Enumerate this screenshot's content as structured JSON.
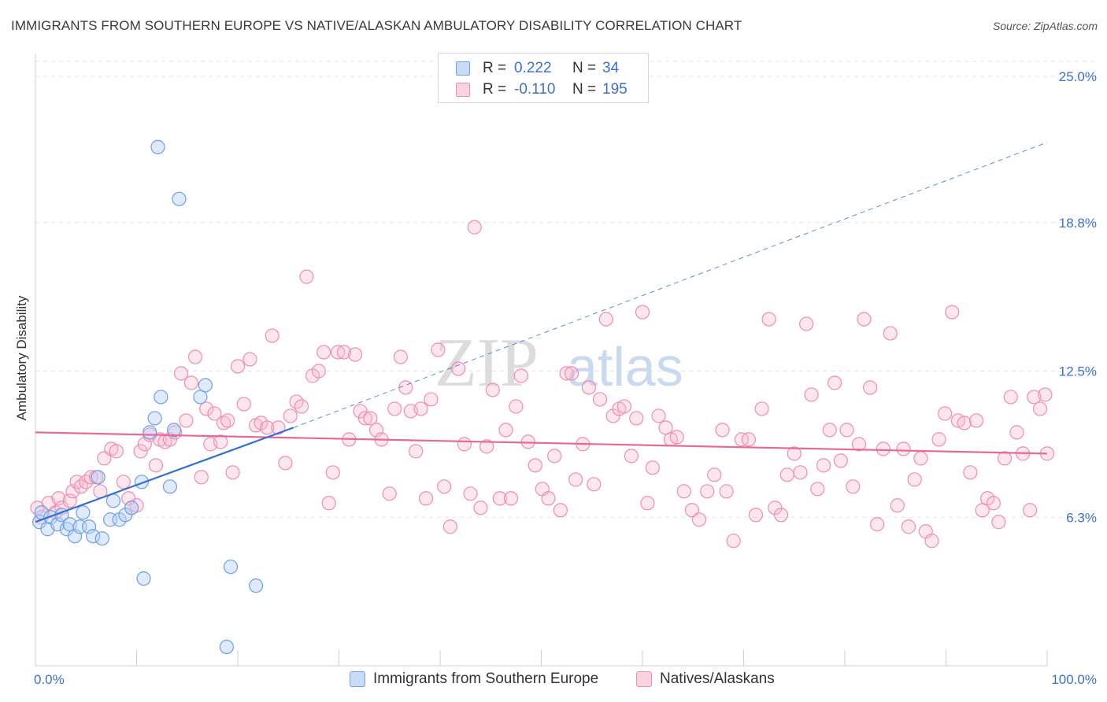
{
  "title": "IMMIGRANTS FROM SOUTHERN EUROPE VS NATIVE/ALASKAN AMBULATORY DISABILITY CORRELATION CHART",
  "source": "Source: ZipAtlas.com",
  "watermark": {
    "zip": "ZIP",
    "atlas": "atlas"
  },
  "legend": {
    "rows": [
      {
        "r_label": "R =",
        "r_value": "0.222",
        "n_label": "N =",
        "n_value": "34"
      },
      {
        "r_label": "R =",
        "r_value": "-0.110",
        "n_label": "N =",
        "n_value": "195"
      }
    ]
  },
  "chart_data": {
    "type": "scatter",
    "title": "IMMIGRANTS FROM SOUTHERN EUROPE VS NATIVE/ALASKAN AMBULATORY DISABILITY CORRELATION CHART",
    "xlabel": "",
    "ylabel": "Ambulatory Disability",
    "xlim": [
      0,
      100
    ],
    "ylim": [
      0,
      25.8
    ],
    "x_tick_labels": [
      "0.0%",
      "100.0%"
    ],
    "y_tick_labels": [
      "6.3%",
      "12.5%",
      "18.8%",
      "25.0%"
    ],
    "y_ticks": [
      6.3,
      12.5,
      18.8,
      25.0
    ],
    "grid": "horizontal dashed",
    "legend_position": "top-center",
    "colors": {
      "blue": "#6f9fe6",
      "pink": "#f08cb0",
      "blue_line": "#2f6fd6",
      "pink_line": "#e8689a",
      "tick_text": "#3d6fd0"
    },
    "series": [
      {
        "name": "Immigrants from Southern Europe",
        "color": "#6f9fe6",
        "points": [
          [
            0.4,
            6.1
          ],
          [
            0.6,
            6.5
          ],
          [
            1.2,
            5.8
          ],
          [
            1.5,
            6.3
          ],
          [
            2.2,
            6.0
          ],
          [
            2.6,
            6.4
          ],
          [
            3.1,
            5.8
          ],
          [
            3.4,
            6.0
          ],
          [
            3.9,
            5.5
          ],
          [
            4.4,
            5.9
          ],
          [
            4.7,
            6.5
          ],
          [
            5.3,
            5.9
          ],
          [
            5.7,
            5.5
          ],
          [
            6.2,
            8.0
          ],
          [
            6.6,
            5.4
          ],
          [
            7.4,
            6.2
          ],
          [
            7.7,
            7.0
          ],
          [
            8.3,
            6.2
          ],
          [
            8.9,
            6.4
          ],
          [
            9.5,
            6.7
          ],
          [
            10.5,
            7.8
          ],
          [
            10.7,
            3.7
          ],
          [
            11.3,
            9.9
          ],
          [
            11.8,
            10.5
          ],
          [
            12.4,
            11.4
          ],
          [
            12.1,
            22.0
          ],
          [
            13.3,
            7.6
          ],
          [
            13.7,
            10.0
          ],
          [
            14.2,
            19.8
          ],
          [
            16.3,
            11.4
          ],
          [
            16.8,
            11.9
          ],
          [
            18.9,
            0.8
          ],
          [
            19.3,
            4.2
          ],
          [
            21.8,
            3.4
          ]
        ],
        "trend": {
          "x": [
            0,
            25.5
          ],
          "y": [
            6.1,
            10.1
          ],
          "extended_x": [
            25.5,
            100
          ],
          "extended_y": [
            10.1,
            22.2
          ]
        }
      },
      {
        "name": "Natives/Alaskans",
        "color": "#f08cb0",
        "points": [
          [
            0.2,
            6.7
          ],
          [
            0.6,
            6.3
          ],
          [
            1.3,
            6.9
          ],
          [
            2.0,
            6.5
          ],
          [
            2.3,
            7.1
          ],
          [
            2.6,
            6.7
          ],
          [
            3.4,
            7.0
          ],
          [
            3.7,
            7.4
          ],
          [
            4.1,
            7.8
          ],
          [
            4.5,
            7.6
          ],
          [
            5.0,
            7.8
          ],
          [
            5.5,
            8.0
          ],
          [
            6.0,
            8.0
          ],
          [
            6.4,
            7.4
          ],
          [
            6.8,
            8.8
          ],
          [
            7.5,
            9.2
          ],
          [
            8.0,
            9.1
          ],
          [
            8.7,
            7.8
          ],
          [
            9.2,
            7.1
          ],
          [
            9.5,
            6.7
          ],
          [
            10.0,
            6.8
          ],
          [
            10.4,
            9.1
          ],
          [
            10.8,
            9.4
          ],
          [
            11.3,
            9.8
          ],
          [
            11.9,
            8.5
          ],
          [
            12.3,
            9.6
          ],
          [
            12.8,
            9.5
          ],
          [
            13.3,
            9.6
          ],
          [
            13.8,
            9.9
          ],
          [
            14.4,
            12.4
          ],
          [
            14.9,
            10.4
          ],
          [
            15.4,
            12.0
          ],
          [
            15.8,
            13.1
          ],
          [
            16.4,
            8.0
          ],
          [
            16.9,
            10.9
          ],
          [
            17.3,
            9.4
          ],
          [
            17.7,
            10.7
          ],
          [
            18.3,
            9.5
          ],
          [
            18.6,
            10.3
          ],
          [
            19.0,
            10.4
          ],
          [
            19.5,
            8.2
          ],
          [
            20.0,
            12.7
          ],
          [
            20.6,
            11.1
          ],
          [
            21.2,
            13.0
          ],
          [
            21.8,
            10.2
          ],
          [
            22.3,
            10.3
          ],
          [
            22.9,
            10.1
          ],
          [
            23.4,
            14.0
          ],
          [
            24.0,
            10.1
          ],
          [
            24.7,
            8.6
          ],
          [
            25.2,
            10.6
          ],
          [
            25.8,
            11.2
          ],
          [
            26.3,
            11.0
          ],
          [
            26.8,
            16.5
          ],
          [
            27.4,
            12.3
          ],
          [
            28.0,
            12.5
          ],
          [
            28.5,
            13.3
          ],
          [
            29.0,
            6.9
          ],
          [
            29.4,
            8.2
          ],
          [
            29.9,
            13.3
          ],
          [
            30.5,
            13.3
          ],
          [
            31.0,
            9.6
          ],
          [
            31.6,
            13.2
          ],
          [
            32.1,
            10.8
          ],
          [
            32.6,
            10.5
          ],
          [
            33.1,
            10.5
          ],
          [
            33.7,
            10.0
          ],
          [
            34.2,
            9.6
          ],
          [
            35.0,
            7.3
          ],
          [
            35.5,
            10.9
          ],
          [
            36.1,
            13.1
          ],
          [
            36.6,
            11.8
          ],
          [
            37.1,
            10.8
          ],
          [
            37.6,
            9.1
          ],
          [
            38.1,
            10.9
          ],
          [
            38.6,
            7.1
          ],
          [
            39.1,
            11.3
          ],
          [
            39.8,
            13.4
          ],
          [
            40.4,
            7.6
          ],
          [
            41.0,
            5.9
          ],
          [
            41.8,
            12.6
          ],
          [
            42.4,
            9.4
          ],
          [
            43.0,
            7.3
          ],
          [
            43.4,
            18.6
          ],
          [
            44.0,
            6.7
          ],
          [
            44.6,
            9.3
          ],
          [
            45.2,
            11.7
          ],
          [
            45.9,
            7.1
          ],
          [
            46.5,
            10.0
          ],
          [
            47.0,
            7.1
          ],
          [
            47.5,
            11.0
          ],
          [
            48.0,
            12.3
          ],
          [
            48.7,
            9.5
          ],
          [
            49.4,
            8.5
          ],
          [
            50.1,
            7.5
          ],
          [
            50.7,
            7.1
          ],
          [
            51.3,
            8.9
          ],
          [
            51.9,
            6.6
          ],
          [
            52.5,
            12.4
          ],
          [
            53.0,
            12.4
          ],
          [
            53.4,
            7.9
          ],
          [
            54.1,
            9.4
          ],
          [
            54.7,
            11.8
          ],
          [
            55.2,
            7.7
          ],
          [
            55.8,
            11.3
          ],
          [
            56.4,
            14.7
          ],
          [
            57.1,
            10.6
          ],
          [
            57.7,
            10.9
          ],
          [
            58.2,
            11.0
          ],
          [
            58.9,
            8.9
          ],
          [
            59.4,
            10.5
          ],
          [
            60.0,
            15.0
          ],
          [
            60.5,
            6.9
          ],
          [
            61.0,
            8.4
          ],
          [
            61.6,
            10.6
          ],
          [
            62.3,
            10.1
          ],
          [
            62.8,
            9.6
          ],
          [
            63.4,
            9.7
          ],
          [
            64.1,
            7.4
          ],
          [
            64.9,
            6.6
          ],
          [
            65.6,
            6.2
          ],
          [
            66.4,
            7.4
          ],
          [
            67.1,
            8.1
          ],
          [
            67.9,
            10.0
          ],
          [
            68.3,
            7.4
          ],
          [
            69.0,
            5.3
          ],
          [
            69.8,
            9.6
          ],
          [
            70.5,
            9.6
          ],
          [
            71.2,
            6.4
          ],
          [
            71.8,
            10.9
          ],
          [
            72.5,
            14.7
          ],
          [
            73.1,
            6.7
          ],
          [
            73.7,
            6.4
          ],
          [
            74.3,
            8.1
          ],
          [
            75.0,
            9.0
          ],
          [
            75.6,
            8.2
          ],
          [
            76.2,
            14.5
          ],
          [
            76.7,
            11.5
          ],
          [
            77.3,
            7.5
          ],
          [
            77.9,
            8.5
          ],
          [
            78.5,
            10.0
          ],
          [
            79.0,
            12.0
          ],
          [
            79.6,
            8.7
          ],
          [
            80.2,
            10.0
          ],
          [
            80.8,
            7.6
          ],
          [
            81.4,
            9.4
          ],
          [
            81.9,
            14.7
          ],
          [
            82.5,
            11.8
          ],
          [
            83.2,
            6.0
          ],
          [
            83.8,
            9.2
          ],
          [
            84.5,
            14.1
          ],
          [
            85.2,
            6.8
          ],
          [
            85.8,
            9.2
          ],
          [
            86.3,
            5.9
          ],
          [
            86.9,
            7.9
          ],
          [
            87.5,
            8.8
          ],
          [
            88.0,
            5.7
          ],
          [
            88.6,
            5.3
          ],
          [
            89.3,
            9.6
          ],
          [
            89.9,
            10.7
          ],
          [
            90.6,
            15.0
          ],
          [
            91.2,
            10.4
          ],
          [
            91.8,
            10.3
          ],
          [
            92.4,
            8.2
          ],
          [
            93.0,
            10.4
          ],
          [
            93.6,
            6.6
          ],
          [
            94.1,
            7.1
          ],
          [
            94.7,
            6.9
          ],
          [
            95.2,
            6.1
          ],
          [
            95.8,
            8.8
          ],
          [
            96.4,
            11.4
          ],
          [
            97.0,
            9.9
          ],
          [
            97.6,
            9.0
          ],
          [
            98.3,
            6.6
          ],
          [
            98.7,
            11.4
          ],
          [
            99.3,
            10.9
          ],
          [
            99.8,
            11.5
          ],
          [
            100.0,
            9.0
          ]
        ],
        "trend": {
          "x": [
            0,
            100
          ],
          "y": [
            9.9,
            9.0
          ]
        }
      }
    ]
  },
  "axis": {
    "y_label": "Ambulatory Disability",
    "x_min_label": "0.0%",
    "x_max_label": "100.0%"
  },
  "bottom_legend": [
    {
      "label": "Immigrants from Southern Europe"
    },
    {
      "label": "Natives/Alaskans"
    }
  ]
}
